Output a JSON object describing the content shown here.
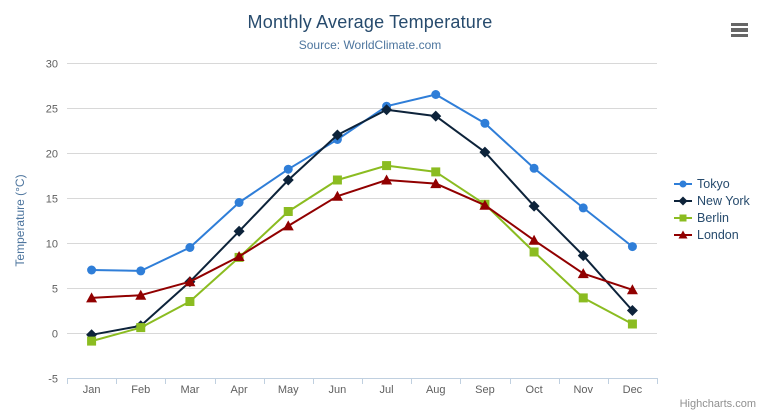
{
  "header": {
    "title": "Monthly Average Temperature",
    "subtitle": "Source: WorldClimate.com"
  },
  "context_menu": {
    "icon": "hamburger-icon"
  },
  "credits": {
    "label": "Highcharts.com"
  },
  "colors": {
    "title": "#274b6d",
    "subtitle": "#4d759e",
    "axis_title": "#4d759e",
    "axis_labels": "#606060",
    "grid_line": "#d8d8d8",
    "axis_line": "#c0d0e0",
    "legend_text": "#274b6d",
    "credits_text": "#909090",
    "menu_icon": "#666666"
  },
  "chart_data": {
    "type": "line",
    "title": "Monthly Average Temperature",
    "subtitle": "Source: WorldClimate.com",
    "xlabel": "",
    "ylabel": "Temperature (°C)",
    "ylim": [
      -5,
      30
    ],
    "yticks": [
      30,
      25,
      20,
      15,
      10,
      5,
      0,
      -5
    ],
    "grid": true,
    "legend_position": "right",
    "categories": [
      "Jan",
      "Feb",
      "Mar",
      "Apr",
      "May",
      "Jun",
      "Jul",
      "Aug",
      "Sep",
      "Oct",
      "Nov",
      "Dec"
    ],
    "series": [
      {
        "name": "Tokyo",
        "color": "#2f7ed8",
        "marker": "circle",
        "values": [
          7.0,
          6.9,
          9.5,
          14.5,
          18.2,
          21.5,
          25.2,
          26.5,
          23.3,
          18.3,
          13.9,
          9.6
        ]
      },
      {
        "name": "New York",
        "color": "#0d233a",
        "marker": "diamond",
        "values": [
          -0.2,
          0.8,
          5.7,
          11.3,
          17.0,
          22.0,
          24.8,
          24.1,
          20.1,
          14.1,
          8.6,
          2.5
        ]
      },
      {
        "name": "Berlin",
        "color": "#8bbc21",
        "marker": "square",
        "values": [
          -0.9,
          0.6,
          3.5,
          8.4,
          13.5,
          17.0,
          18.6,
          17.9,
          14.3,
          9.0,
          3.9,
          1.0
        ]
      },
      {
        "name": "London",
        "color": "#910000",
        "marker": "triangle",
        "values": [
          3.9,
          4.2,
          5.7,
          8.5,
          11.9,
          15.2,
          17.0,
          16.6,
          14.2,
          10.3,
          6.6,
          4.8
        ]
      }
    ]
  }
}
